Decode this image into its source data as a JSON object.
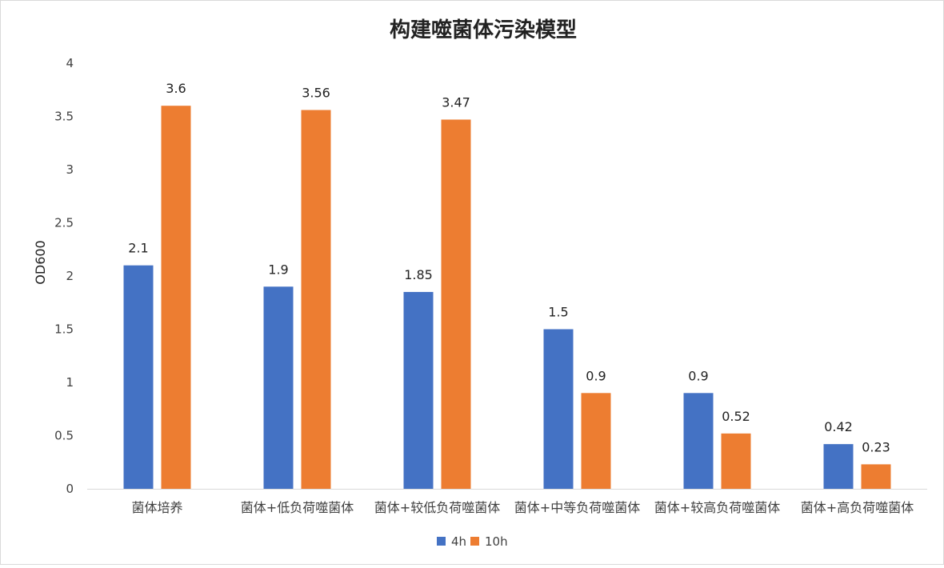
{
  "chart_data": {
    "type": "bar",
    "title": "构建噬菌体污染模型",
    "xlabel": "",
    "ylabel": "OD600",
    "ylim": [
      0,
      4
    ],
    "yticks": [
      "0",
      "0.5",
      "1",
      "1.5",
      "2",
      "2.5",
      "3",
      "3.5",
      "4"
    ],
    "categories": [
      "菌体培养",
      "菌体+低负荷噬菌体",
      "菌体+较低负荷噬菌体",
      "菌体+中等负荷噬菌体",
      "菌体+较高负荷噬菌体",
      "菌体+高负荷噬菌体"
    ],
    "series": [
      {
        "name": "4h",
        "color": "#4472C4",
        "values": [
          2.1,
          1.9,
          1.85,
          1.5,
          0.9,
          0.42
        ],
        "labels": [
          "2.1",
          "1.9",
          "1.85",
          "1.5",
          "0.9",
          "0.42"
        ]
      },
      {
        "name": "10h",
        "color": "#ED7D31",
        "values": [
          3.6,
          3.56,
          3.47,
          0.9,
          0.52,
          0.23
        ],
        "labels": [
          "3.6",
          "3.56",
          "3.47",
          "0.9",
          "0.52",
          "0.23"
        ]
      }
    ],
    "grid": false,
    "legend": "bottom"
  }
}
